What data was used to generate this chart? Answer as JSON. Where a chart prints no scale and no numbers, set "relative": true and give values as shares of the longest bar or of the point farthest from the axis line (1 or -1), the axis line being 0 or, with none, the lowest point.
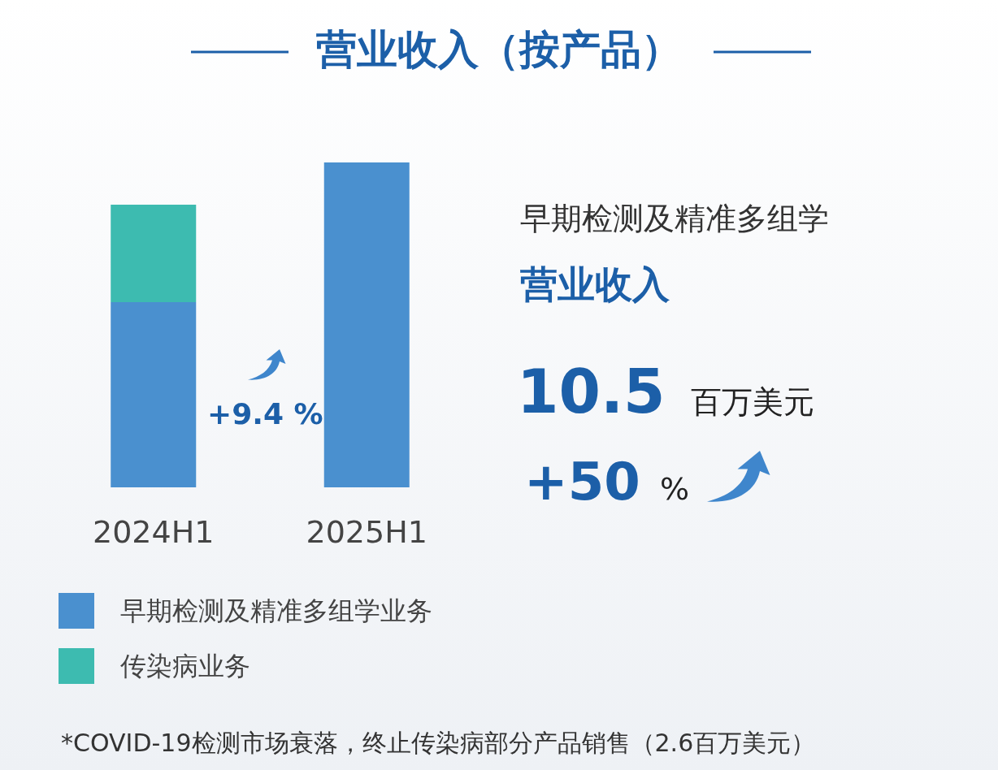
{
  "chart_data": {
    "type": "bar",
    "title": "营业收入（按产品）",
    "stacked": true,
    "relative": true,
    "categories": [
      "2024H1",
      "2025H1"
    ],
    "series": [
      {
        "name": "早期检测及精准多组学业务",
        "color": "#4a90cf",
        "values": [
          0.57,
          1
        ]
      },
      {
        "name": "传染病业务",
        "color": "#3dbbb0",
        "values": [
          0.3,
          null
        ]
      }
    ],
    "legend": "bottom left",
    "annotations": [
      "+9.4 %",
      "早期检测及精准多组学",
      "营业收入",
      "10.5",
      "百万美元",
      "+50",
      "%",
      "*COVID-19检测市场衰落，终止传染病部分产品销售（2.6百万美元）"
    ]
  }
}
